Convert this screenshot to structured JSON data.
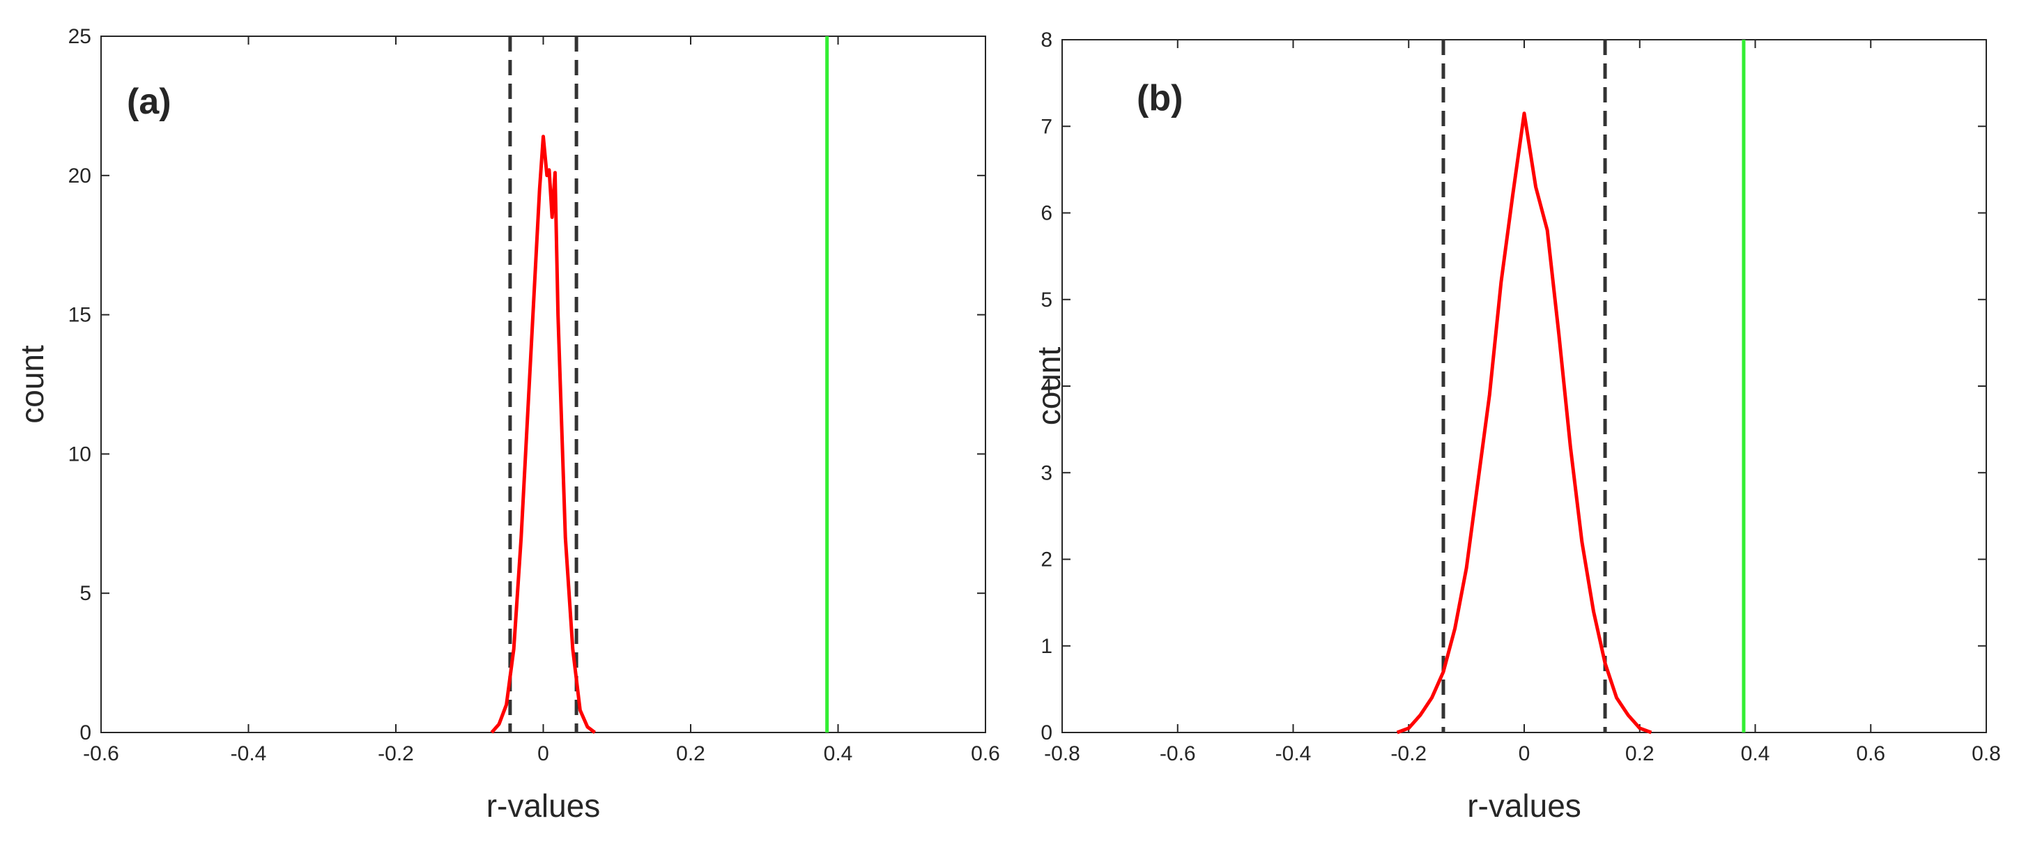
{
  "chart_data": [
    {
      "type": "line",
      "annotation": "(a)",
      "xlabel": "r-values",
      "ylabel": "count",
      "xlim": [
        -0.6,
        0.6
      ],
      "xticks": [
        -0.6,
        -0.4,
        -0.2,
        0,
        0.2,
        0.4,
        0.6
      ],
      "ylim": [
        0,
        25
      ],
      "yticks": [
        0,
        5,
        10,
        15,
        20,
        25
      ],
      "vlines": [
        {
          "x": -0.045,
          "color": "#333333",
          "dashed": true
        },
        {
          "x": 0.045,
          "color": "#333333",
          "dashed": true
        },
        {
          "x": 0.385,
          "color": "#33ee33",
          "dashed": false
        }
      ],
      "series": [
        {
          "color": "#ff0000",
          "x": [
            -0.07,
            -0.06,
            -0.05,
            -0.04,
            -0.03,
            -0.02,
            -0.01,
            -0.005,
            0,
            0.005,
            0.008,
            0.012,
            0.016,
            0.02,
            0.025,
            0.03,
            0.04,
            0.05,
            0.06,
            0.07
          ],
          "values": [
            0,
            0.3,
            1,
            3,
            7,
            12,
            17,
            19.5,
            21.4,
            20,
            20.2,
            18.5,
            20.1,
            15,
            11,
            7,
            3,
            0.8,
            0.2,
            0
          ]
        }
      ]
    },
    {
      "type": "line",
      "annotation": "(b)",
      "xlabel": "r-values",
      "ylabel": "count",
      "xlim": [
        -0.8,
        0.8
      ],
      "xticks": [
        -0.8,
        -0.6,
        -0.4,
        -0.2,
        0,
        0.2,
        0.4,
        0.6,
        0.8
      ],
      "ylim": [
        0,
        8
      ],
      "yticks": [
        0,
        1,
        2,
        3,
        4,
        5,
        6,
        7,
        8
      ],
      "vlines": [
        {
          "x": -0.14,
          "color": "#333333",
          "dashed": true
        },
        {
          "x": 0.14,
          "color": "#333333",
          "dashed": true
        },
        {
          "x": 0.38,
          "color": "#33ee33",
          "dashed": false
        }
      ],
      "series": [
        {
          "color": "#ff0000",
          "x": [
            -0.22,
            -0.2,
            -0.18,
            -0.16,
            -0.14,
            -0.12,
            -0.1,
            -0.08,
            -0.06,
            -0.04,
            -0.02,
            0,
            0.02,
            0.04,
            0.06,
            0.08,
            0.1,
            0.12,
            0.14,
            0.16,
            0.18,
            0.2,
            0.22
          ],
          "values": [
            0,
            0.05,
            0.2,
            0.4,
            0.7,
            1.2,
            1.9,
            2.9,
            3.9,
            5.2,
            6.2,
            7.15,
            6.3,
            5.8,
            4.6,
            3.3,
            2.2,
            1.4,
            0.8,
            0.4,
            0.2,
            0.05,
            0
          ]
        }
      ]
    }
  ]
}
